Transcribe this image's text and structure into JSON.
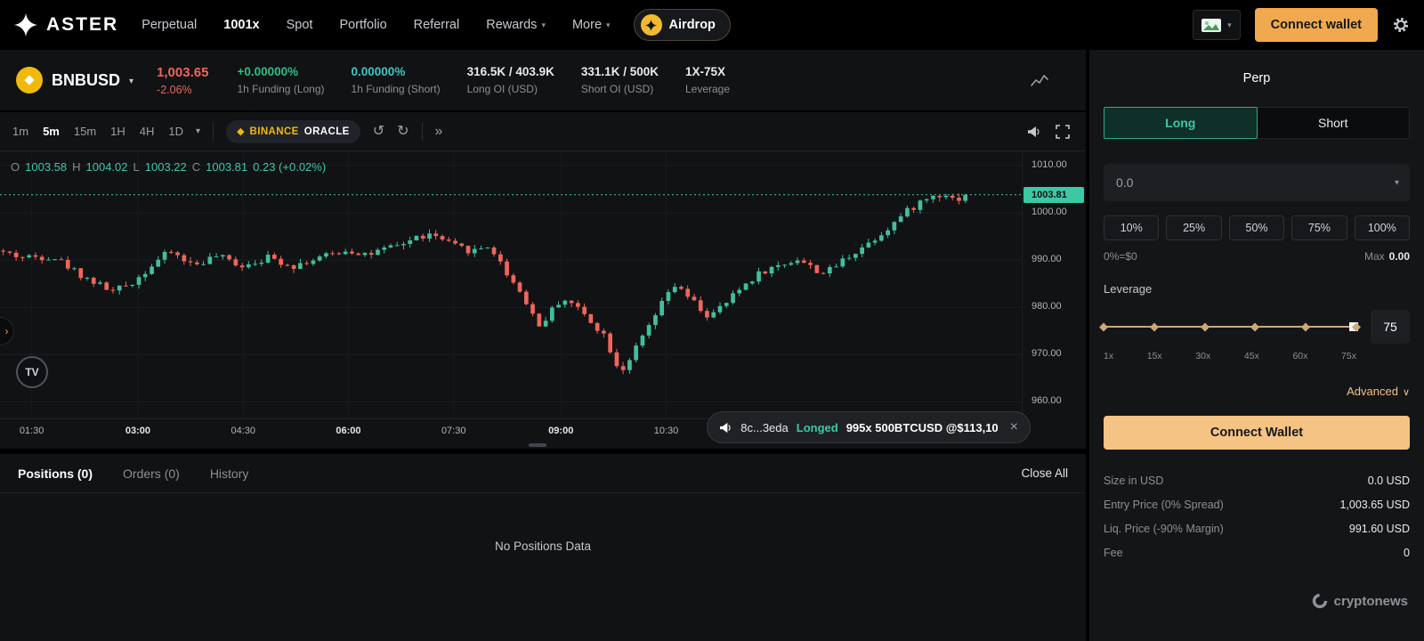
{
  "colors": {
    "up": "#40bf9d",
    "down": "#f0655a",
    "teal": "#3cc8a4",
    "green": "#2ebd85",
    "cyan": "#3ec6c0",
    "red": "#f0655a",
    "gold": "#f0a94f",
    "pale_gold": "#f5c383"
  },
  "topnav": {
    "brand": "ASTER",
    "items": [
      {
        "label": "Perpetual",
        "active": false,
        "dropdown": false
      },
      {
        "label": "1001x",
        "active": true,
        "dropdown": false
      },
      {
        "label": "Spot",
        "active": false,
        "dropdown": false
      },
      {
        "label": "Portfolio",
        "active": false,
        "dropdown": false
      },
      {
        "label": "Referral",
        "active": false,
        "dropdown": false
      },
      {
        "label": "Rewards",
        "active": false,
        "dropdown": true
      },
      {
        "label": "More",
        "active": false,
        "dropdown": true
      }
    ],
    "airdrop_label": "Airdrop",
    "connect_wallet_label": "Connect wallet"
  },
  "ticker": {
    "symbol": "BNBUSD",
    "price": "1,003.65",
    "change": "-2.06%",
    "stats": [
      {
        "value": "+0.00000%",
        "label": "1h Funding (Long)",
        "color": "green"
      },
      {
        "value": "0.00000%",
        "label": "1h Funding (Short)",
        "color": "cyan"
      },
      {
        "value": "316.5K / 403.9K",
        "label": "Long OI (USD)",
        "color": ""
      },
      {
        "value": "331.1K / 500K",
        "label": "Short OI (USD)",
        "color": ""
      },
      {
        "value": "1X-75X",
        "label": "Leverage",
        "color": ""
      }
    ]
  },
  "chart": {
    "intervals": [
      "1m",
      "5m",
      "15m",
      "1H",
      "4H",
      "1D"
    ],
    "active_interval": "5m",
    "oracle_brand": "BINANCE",
    "oracle_word": "ORACLE",
    "ohlc": {
      "o_label": "O",
      "o": "1003.58",
      "h_label": "H",
      "h": "1004.02",
      "l_label": "L",
      "l": "1003.22",
      "c_label": "C",
      "c": "1003.81",
      "change": "0.23 (+0.02%)"
    },
    "tv_label": "TV",
    "toast": {
      "address": "8c...3eda",
      "action": "Longed",
      "detail": "995x 500BTCUSD @$113,10",
      "close": "×"
    }
  },
  "chart_data": {
    "type": "candlestick",
    "price_top": 1013,
    "price_bottom": 956.5,
    "grid_prices": [
      1010,
      1000,
      990,
      980,
      970,
      960
    ],
    "price_labels": [
      "1010.00",
      "1000.00",
      "990.00",
      "980.00",
      "970.00",
      "960.00"
    ],
    "last_price": 1003.81,
    "last_price_label": "1003.81",
    "candle_count": 150,
    "time_labels": [
      {
        "t": "01:30",
        "f": 0.031,
        "strong": false
      },
      {
        "t": "03:00",
        "f": 0.135,
        "strong": true
      },
      {
        "t": "04:30",
        "f": 0.238,
        "strong": false
      },
      {
        "t": "06:00",
        "f": 0.341,
        "strong": true
      },
      {
        "t": "07:30",
        "f": 0.444,
        "strong": false
      },
      {
        "t": "09:00",
        "f": 0.549,
        "strong": true
      },
      {
        "t": "10:30",
        "f": 0.652,
        "strong": false
      }
    ],
    "anchors": [
      [
        0.0,
        992.0
      ],
      [
        0.025,
        990.6
      ],
      [
        0.055,
        990.8
      ],
      [
        0.085,
        986.5
      ],
      [
        0.114,
        983.3
      ],
      [
        0.135,
        985.6
      ],
      [
        0.155,
        989.6
      ],
      [
        0.17,
        991.8
      ],
      [
        0.192,
        988.9
      ],
      [
        0.215,
        990.8
      ],
      [
        0.24,
        988.9
      ],
      [
        0.265,
        990.6
      ],
      [
        0.29,
        988.8
      ],
      [
        0.318,
        990.6
      ],
      [
        0.342,
        992.1
      ],
      [
        0.365,
        991.2
      ],
      [
        0.39,
        992.8
      ],
      [
        0.412,
        994.9
      ],
      [
        0.426,
        995.3
      ],
      [
        0.448,
        992.9
      ],
      [
        0.466,
        991.9
      ],
      [
        0.482,
        993.1
      ],
      [
        0.5,
        987.0
      ],
      [
        0.515,
        982.5
      ],
      [
        0.531,
        976.0
      ],
      [
        0.553,
        982.0
      ],
      [
        0.565,
        980.5
      ],
      [
        0.58,
        977.5
      ],
      [
        0.595,
        974.0
      ],
      [
        0.61,
        966.2
      ],
      [
        0.625,
        971.0
      ],
      [
        0.64,
        976.5
      ],
      [
        0.662,
        984.8
      ],
      [
        0.68,
        981.5
      ],
      [
        0.697,
        977.8
      ],
      [
        0.712,
        980.5
      ],
      [
        0.73,
        984.5
      ],
      [
        0.748,
        987.5
      ],
      [
        0.762,
        988.5
      ],
      [
        0.784,
        990.3
      ],
      [
        0.8,
        988.0
      ],
      [
        0.812,
        987.2
      ],
      [
        0.828,
        990.0
      ],
      [
        0.845,
        992.5
      ],
      [
        0.862,
        995.0
      ],
      [
        0.876,
        997.5
      ],
      [
        0.889,
        1000.0
      ],
      [
        0.902,
        1002.0
      ],
      [
        0.915,
        1003.5
      ],
      [
        0.928,
        1004.2
      ],
      [
        0.938,
        1002.6
      ],
      [
        0.948,
        1003.81
      ]
    ]
  },
  "positions": {
    "tabs": [
      {
        "label": "Positions (0)",
        "active": true
      },
      {
        "label": "Orders (0)",
        "active": false
      },
      {
        "label": "History",
        "active": false
      }
    ],
    "close_all": "Close All",
    "empty": "No Positions Data"
  },
  "panel": {
    "title": "Perp",
    "side_tabs": [
      {
        "label": "Long",
        "active": true
      },
      {
        "label": "Short",
        "active": false
      }
    ],
    "amount_value": "0.0",
    "percent_options": [
      "10%",
      "25%",
      "50%",
      "75%",
      "100%"
    ],
    "hint_left": "0%=$0",
    "hint_right_label": "Max",
    "hint_right_value": "0.00",
    "leverage_label": "Leverage",
    "leverage_value": "75",
    "leverage_marks": [
      "1x",
      "15x",
      "30x",
      "45x",
      "60x",
      "75x"
    ],
    "advanced_label": "Advanced",
    "connect_wallet_label": "Connect Wallet",
    "details": [
      {
        "label": "Size in USD",
        "value": "0.0 USD"
      },
      {
        "label": "Entry Price (0% Spread)",
        "value": "1,003.65 USD"
      },
      {
        "label": "Liq. Price (-90% Margin)",
        "value": "991.60 USD"
      },
      {
        "label": "Fee",
        "value": "0"
      }
    ],
    "watermark": "cryptonews"
  }
}
